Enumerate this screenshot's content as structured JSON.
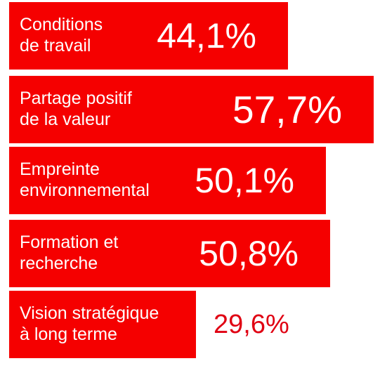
{
  "chart_data": {
    "type": "bar",
    "orientation": "horizontal",
    "categories": [
      "Conditions\nde travail",
      "Partage positif\nde la valeur",
      "Empreinte\nenvironnemental",
      "Formation et\nrecherche",
      "Vision stratégique\nà long terme"
    ],
    "values": [
      44.1,
      57.7,
      50.1,
      50.8,
      29.6
    ],
    "value_labels": [
      "44,1%",
      "57,7%",
      "50,1%",
      "50,8%",
      "29,6%"
    ],
    "title": "",
    "xlabel": "",
    "ylabel": "",
    "xlim": [
      0,
      60
    ],
    "grid": false,
    "legend": "none",
    "colors": {
      "bar": "#f50000",
      "bar_label_text": "#ffffff",
      "value_text_inside": "#ffffff",
      "value_text_outside": "#e00012"
    }
  }
}
